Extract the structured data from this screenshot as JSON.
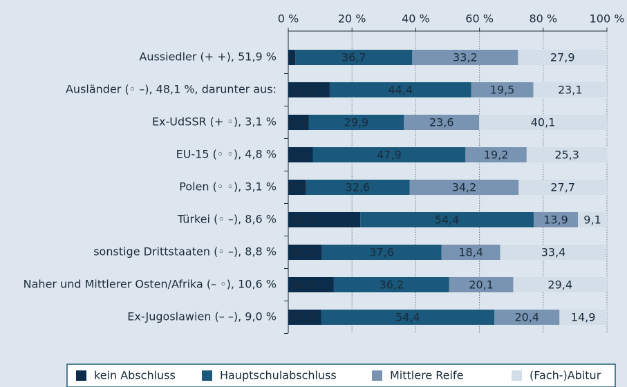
{
  "chart_data": {
    "type": "stacked-bar-horizontal",
    "categories": [
      "Aussiedler (+ +), 51,9 %",
      "Ausländer (◦ –), 48,1 %, darunter aus:",
      "Ex-UdSSR (+ ◦), 3,1 %",
      "EU-15 (◦ ◦), 4,8 %",
      "Polen (◦ ◦), 3,1 %",
      "Türkei (◦ –), 8,6 %",
      "sonstige Drittstaaten (◦ –), 8,8 %",
      "Naher und Mittlerer Osten/Afrika (– ◦), 10,6 %",
      "Ex-Jugoslawien (– –), 9,0 %"
    ],
    "series": [
      {
        "name": "kein Abschluss",
        "color": "#0c2c4c",
        "values": [
          2.2,
          13.0,
          6.4,
          7.7,
          5.5,
          22.6,
          10.5,
          14.3,
          10.3
        ],
        "value_labels": [
          "2,2",
          "13,0",
          "6,4",
          "7,7",
          "5,5",
          "22,6",
          "10,5",
          "14,3",
          "10,3"
        ]
      },
      {
        "name": "Hauptschulabschluss",
        "color": "#1a587c",
        "values": [
          36.7,
          44.4,
          29.9,
          47.9,
          32.6,
          54.4,
          37.6,
          36.2,
          54.4
        ],
        "value_labels": [
          "36,7",
          "44,4",
          "29,9",
          "47,9",
          "32,6",
          "54,4",
          "37,6",
          "36,2",
          "54,4"
        ]
      },
      {
        "name": "Mittlere Reife",
        "color": "#7894b2",
        "values": [
          33.2,
          19.5,
          23.6,
          19.2,
          34.2,
          13.9,
          18.4,
          20.1,
          20.4
        ],
        "value_labels": [
          "33,2",
          "19,5",
          "23,6",
          "19,2",
          "34,2",
          "13,9",
          "18,4",
          "20,1",
          "20,4"
        ]
      },
      {
        "name": "(Fach-)Abitur",
        "color": "#d3dee8",
        "values": [
          27.9,
          23.1,
          40.1,
          25.3,
          27.7,
          9.1,
          33.4,
          29.4,
          14.9
        ],
        "value_labels": [
          "27,9",
          "23,1",
          "40,1",
          "25,3",
          "27,7",
          "9,1",
          "33,4",
          "29,4",
          "14,9"
        ]
      }
    ],
    "xlim": [
      0,
      100
    ],
    "xticks": [
      {
        "value": 0,
        "label": "0 %"
      },
      {
        "value": 20,
        "label": "20 %"
      },
      {
        "value": 40,
        "label": "40 %"
      },
      {
        "value": 60,
        "label": "60 %"
      },
      {
        "value": 80,
        "label": "80 %"
      },
      {
        "value": 100,
        "label": "100 %"
      }
    ],
    "grid": true
  }
}
